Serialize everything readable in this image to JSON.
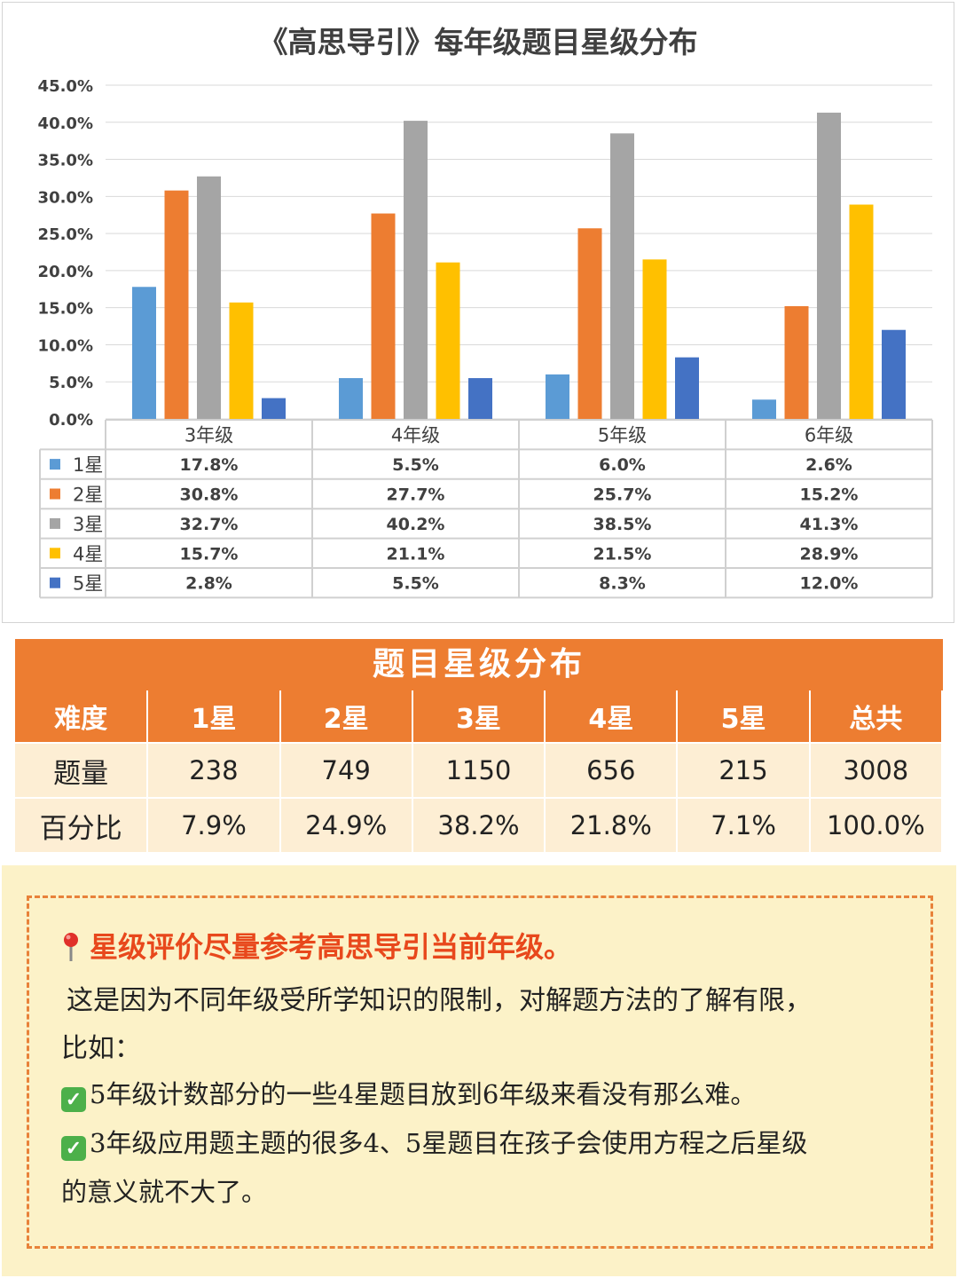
{
  "chart_data": {
    "type": "bar",
    "title": "《高思导引》每年级题目星级分布",
    "categories": [
      "3年级",
      "4年级",
      "5年级",
      "6年级"
    ],
    "series": [
      {
        "name": "1星",
        "color": "#5b9bd5",
        "values": [
          17.8,
          5.5,
          6.0,
          2.6
        ],
        "labels": [
          "17.8%",
          "5.5%",
          "6.0%",
          "2.6%"
        ]
      },
      {
        "name": "2星",
        "color": "#ed7d31",
        "values": [
          30.8,
          27.7,
          25.7,
          15.2
        ],
        "labels": [
          "30.8%",
          "27.7%",
          "25.7%",
          "15.2%"
        ]
      },
      {
        "name": "3星",
        "color": "#a5a5a5",
        "values": [
          32.7,
          40.2,
          38.5,
          41.3
        ],
        "labels": [
          "32.7%",
          "40.2%",
          "38.5%",
          "41.3%"
        ]
      },
      {
        "name": "4星",
        "color": "#ffc000",
        "values": [
          15.7,
          21.1,
          21.5,
          28.9
        ],
        "labels": [
          "15.7%",
          "21.1%",
          "21.5%",
          "28.9%"
        ]
      },
      {
        "name": "5星",
        "color": "#4472c4",
        "values": [
          2.8,
          5.5,
          8.3,
          12.0
        ],
        "labels": [
          "2.8%",
          "5.5%",
          "8.3%",
          "12.0%"
        ]
      }
    ],
    "ylim": [
      0,
      45
    ],
    "yticks": [
      0,
      5,
      10,
      15,
      20,
      25,
      30,
      35,
      40,
      45
    ],
    "ytick_labels": [
      "0.0%",
      "5.0%",
      "10.0%",
      "15.0%",
      "20.0%",
      "25.0%",
      "30.0%",
      "35.0%",
      "40.0%",
      "45.0%"
    ],
    "grid": true,
    "data_table": true
  },
  "distribution": {
    "title": "题目星级分布",
    "headers": [
      "难度",
      "1星",
      "2星",
      "3星",
      "4星",
      "5星",
      "总共"
    ],
    "rows": [
      [
        "题量",
        "238",
        "749",
        "1150",
        "656",
        "215",
        "3008"
      ],
      [
        "百分比",
        "7.9%",
        "24.9%",
        "38.2%",
        "21.8%",
        "7.1%",
        "100.0%"
      ]
    ]
  },
  "note": {
    "heading": "星级评价尽量参考高思导引当前年级。",
    "para1": "这是因为不同年级受所学知识的限制，对解题方法的了解有限，",
    "para2": "比如：",
    "check1": "5年级计数部分的一些4星题目放到6年级来看没有那么难。",
    "check2": "3年级应用题主题的很多4、5星题目在孩子会使用方程之后星级",
    "check2_cont": "的意义就不大了。",
    "colors": {
      "heading": "#e8481c",
      "check": "#4cb04a",
      "border": "#e8823a",
      "background": "#fcf2c8"
    }
  }
}
